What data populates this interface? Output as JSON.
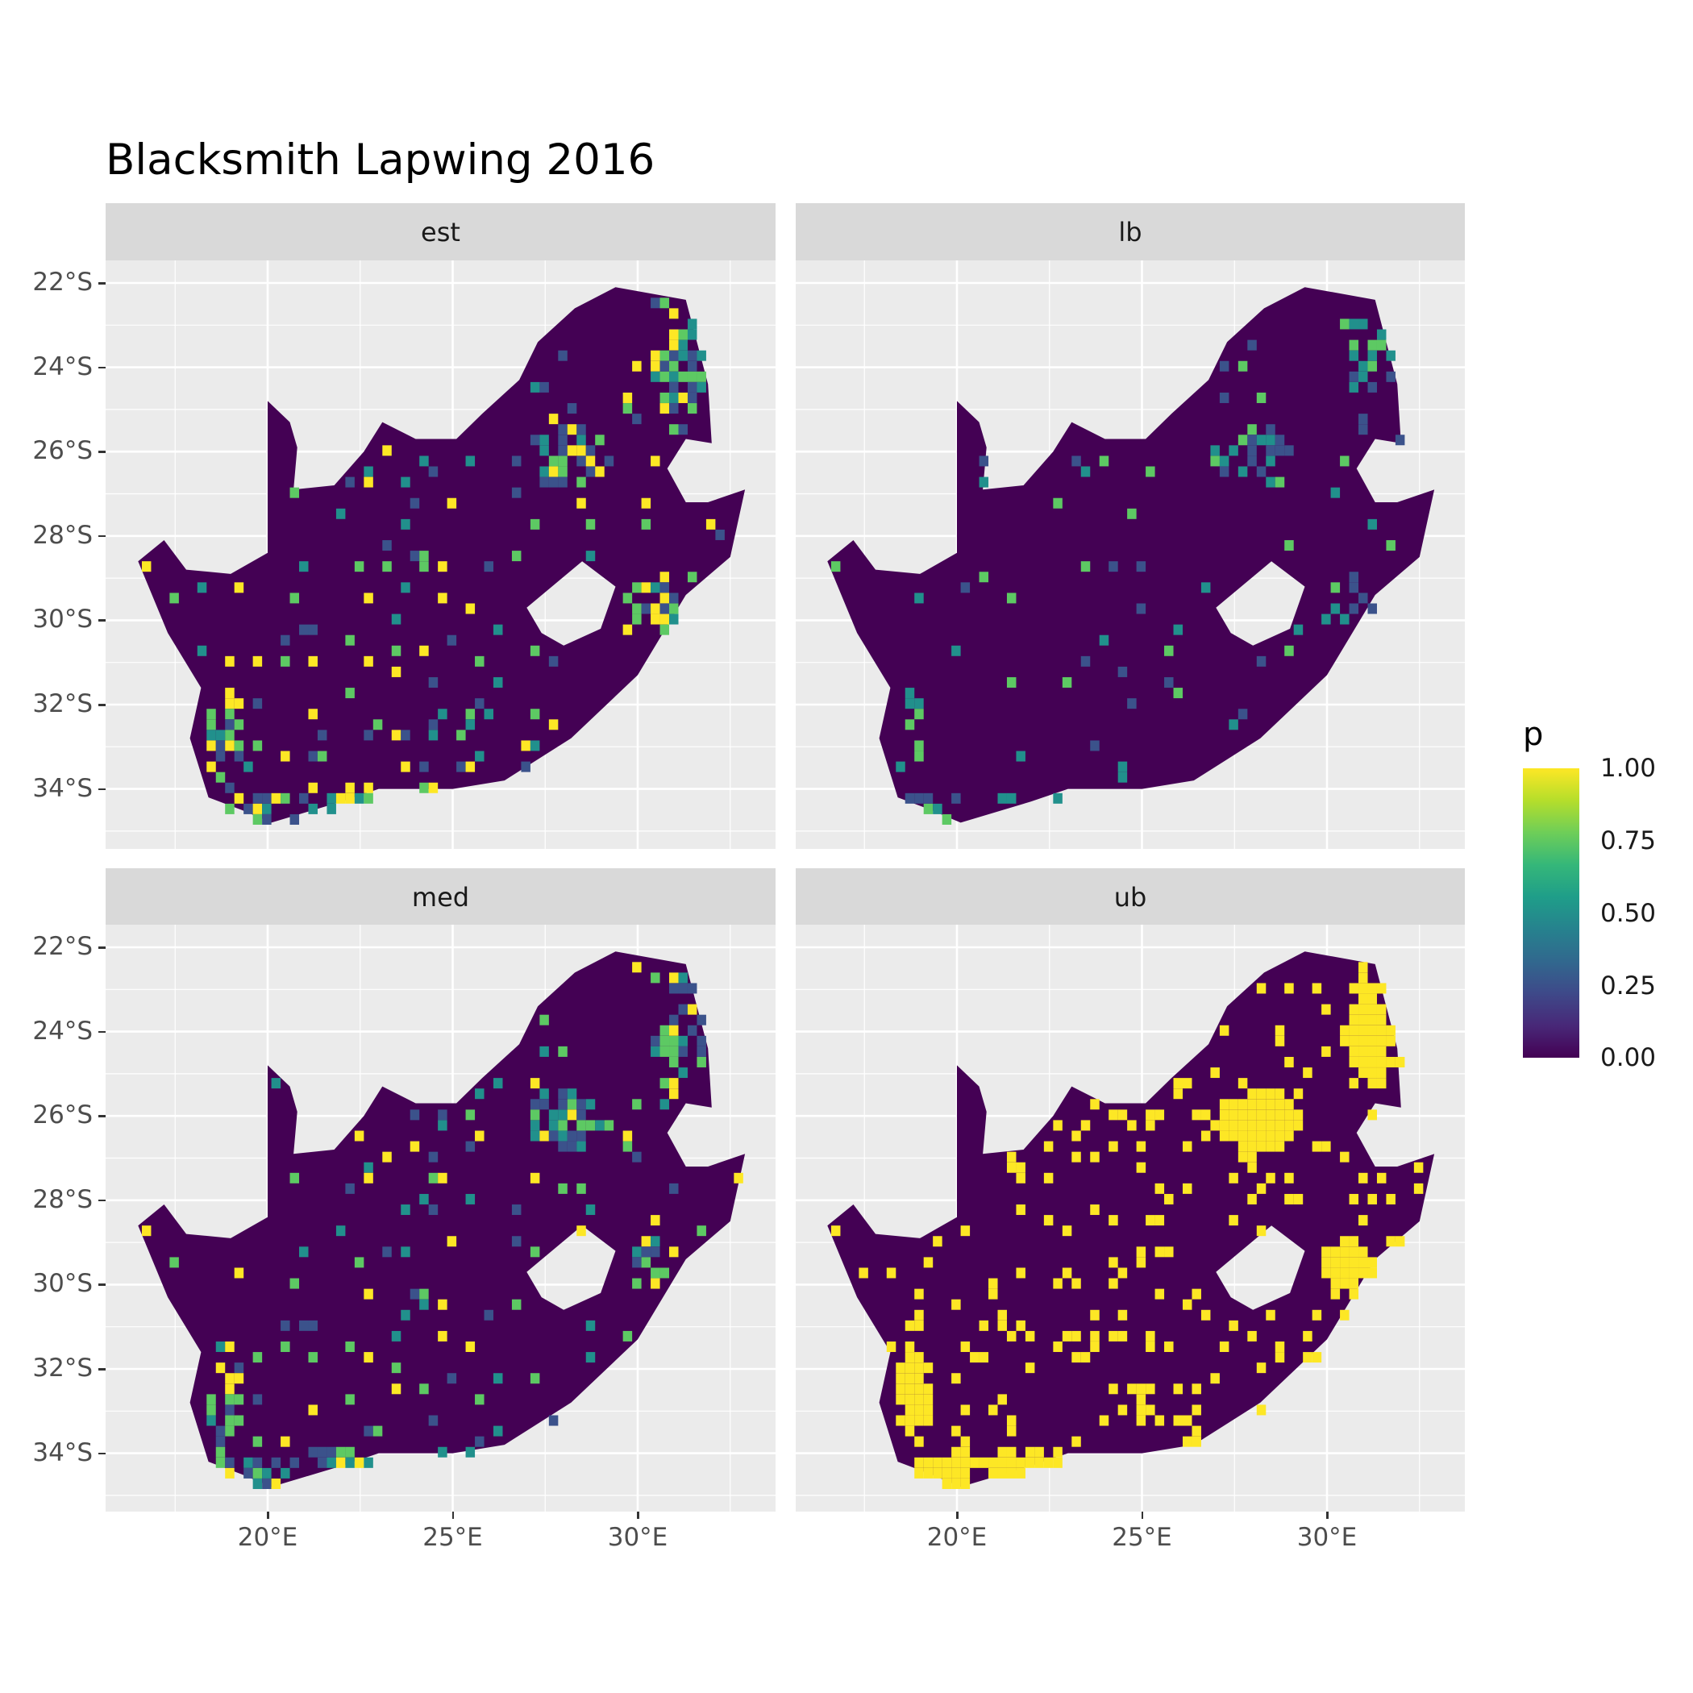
{
  "title": "Blacksmith Lapwing 2016",
  "chart_data": {
    "type": "heatmap",
    "title": "Blacksmith Lapwing 2016",
    "facets": [
      "est",
      "lb",
      "med",
      "ub"
    ],
    "y_ticks": [
      "22°S",
      "24°S",
      "26°S",
      "28°S",
      "30°S",
      "32°S",
      "34°S"
    ],
    "x_ticks": [
      "20°E",
      "25°E",
      "30°E"
    ],
    "y_tick_values": [
      -22,
      -24,
      -26,
      -28,
      -30,
      -32,
      -34
    ],
    "x_tick_values": [
      20,
      25,
      30
    ],
    "xlim": [
      15.6,
      33.7
    ],
    "ylim": [
      -35.5,
      -21.5
    ],
    "grid": true,
    "legend": {
      "title": "p",
      "placement": "right",
      "range": [
        0,
        1
      ],
      "ticks": [
        "1.00",
        "0.75",
        "0.50",
        "0.25",
        "0.00"
      ],
      "colormap": "viridis",
      "colors": [
        "#440154",
        "#3b528b",
        "#21908c",
        "#5dc963",
        "#fde725"
      ]
    },
    "facet_intensity": {
      "est": 0.5,
      "lb": 0.2,
      "med": 0.45,
      "ub": 0.9
    }
  }
}
